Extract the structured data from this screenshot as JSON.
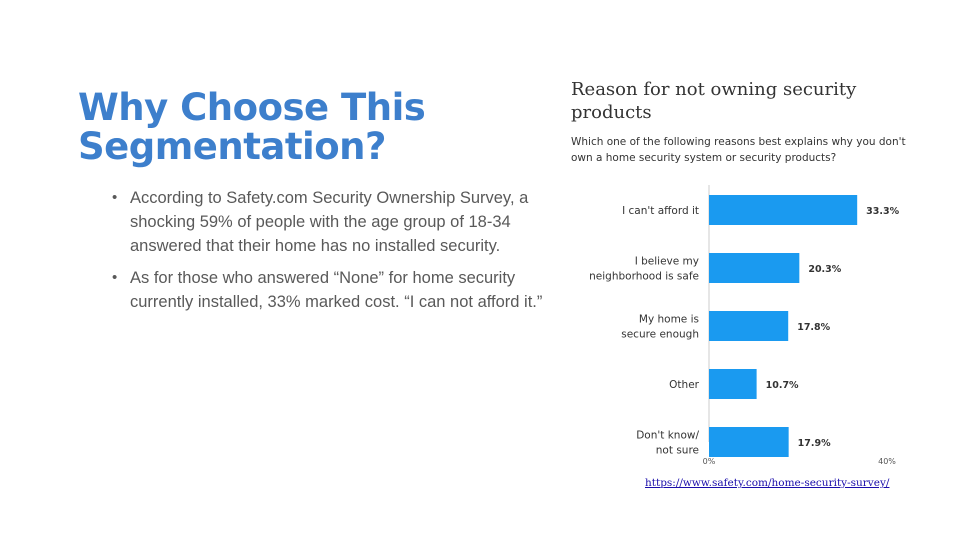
{
  "slide": {
    "title": "Why Choose This Segmentation?",
    "bullets": [
      "According to Safety.com Security Ownership Survey, a shocking 59% of people with the age group of 18-34 answered that their home has no installed security.",
      "As for those who answered “None” for home security currently installed, 33% marked cost. “I can not afford it.”"
    ],
    "source_link": "https://www.safety.com/home-security-survey/"
  },
  "chart_data": {
    "type": "bar",
    "orientation": "horizontal",
    "title": "Reason for not owning security products",
    "subtitle": "Which one of the following reasons best explains why you don't own a home security system or security products?",
    "categories": [
      [
        "I can't afford it"
      ],
      [
        "I believe my",
        "neighborhood is safe"
      ],
      [
        "My home is",
        "secure enough"
      ],
      [
        "Other"
      ],
      [
        "Don't know/",
        "not sure"
      ]
    ],
    "values": [
      33.3,
      20.3,
      17.8,
      10.7,
      17.9
    ],
    "value_labels": [
      "33.3%",
      "20.3%",
      "17.8%",
      "10.7%",
      "17.9%"
    ],
    "xlim": [
      0,
      40
    ],
    "x_tick_labels": [
      "0%",
      "40%"
    ],
    "bar_color": "#1a9af0",
    "grid": false
  }
}
